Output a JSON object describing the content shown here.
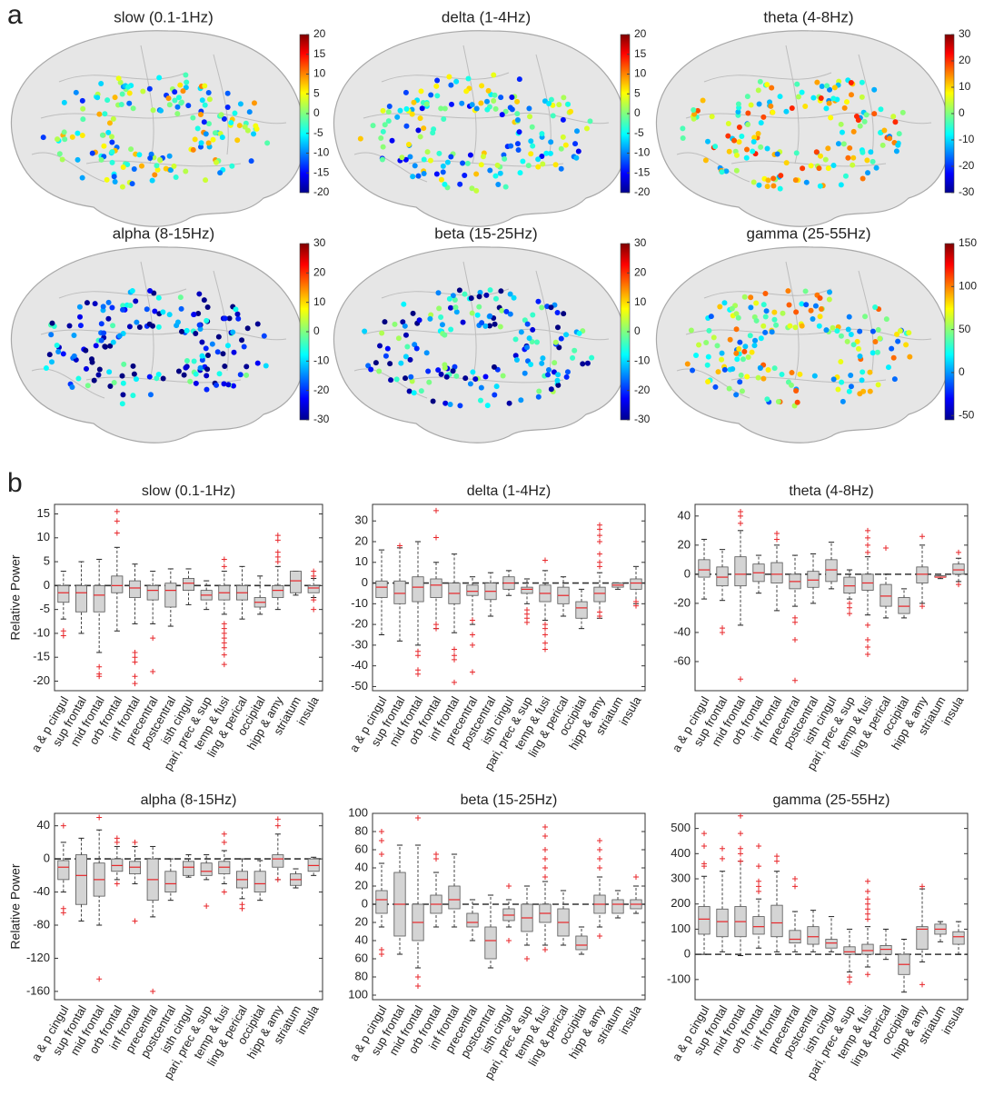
{
  "panel_labels": [
    "a",
    "b"
  ],
  "brain_maps": [
    {
      "title": "slow (0.1-1Hz)",
      "clim": [
        -20,
        20
      ],
      "colorbar_ticks": [
        20,
        15,
        10,
        5,
        0,
        -5,
        -10,
        -15,
        -20
      ]
    },
    {
      "title": "delta (1-4Hz)",
      "clim": [
        -20,
        20
      ],
      "colorbar_ticks": [
        20,
        15,
        10,
        5,
        0,
        -5,
        -10,
        -15,
        -20
      ]
    },
    {
      "title": "theta (4-8Hz)",
      "clim": [
        -30,
        30
      ],
      "colorbar_ticks": [
        30,
        20,
        10,
        0,
        -10,
        -20,
        -30
      ]
    },
    {
      "title": "alpha (8-15Hz)",
      "clim": [
        -30,
        30
      ],
      "colorbar_ticks": [
        30,
        20,
        10,
        0,
        -10,
        -20,
        -30
      ]
    },
    {
      "title": "beta (15-25Hz)",
      "clim": [
        -30,
        30
      ],
      "colorbar_ticks": [
        30,
        20,
        10,
        0,
        -10,
        -20,
        -30
      ]
    },
    {
      "title": "gamma (25-55Hz)",
      "clim": [
        -55,
        150
      ],
      "colorbar_ticks": [
        150,
        100,
        50,
        0,
        -50
      ]
    }
  ],
  "chart_data": [
    {
      "type": "box",
      "title": "slow (0.1-1Hz)",
      "ylabel": "Relative Power",
      "categories": [
        "a & p cingul",
        "sup frontal",
        "mid frontal",
        "orb frontal",
        "inf frontal",
        "precentral",
        "postcentral",
        "isth cingul",
        "pari, prec & sup",
        "temp & fusi",
        "ling & perical",
        "occipital",
        "hipp & amy",
        "striatum",
        "insula"
      ],
      "whisker_low": [
        -7,
        -10,
        -14,
        -9.5,
        -8,
        -8,
        -8.5,
        -4,
        -5,
        -6,
        -7,
        -6,
        -5,
        -2,
        -2.5
      ],
      "q1": [
        -3.5,
        -5.5,
        -5.5,
        -1.5,
        -2.5,
        -3,
        -4.5,
        -1,
        -3,
        -3,
        -3,
        -4.5,
        -2.5,
        -1.5,
        -1.5
      ],
      "median": [
        -1.5,
        -1.5,
        -2,
        0,
        -0.5,
        -1,
        -1,
        0.5,
        -2,
        -1.5,
        -1.5,
        -3.5,
        -1,
        1,
        -0.5
      ],
      "q3": [
        0,
        0,
        0,
        2,
        1,
        0,
        0.5,
        1.5,
        -1,
        0,
        0,
        -2.5,
        0,
        3,
        0
      ],
      "whisker_high": [
        3,
        5,
        5.5,
        8,
        4.5,
        3,
        3.5,
        3.5,
        1,
        3,
        4,
        2,
        4,
        3,
        1.5
      ],
      "outliers": [
        [
          -9.5,
          -10.5
        ],
        [],
        [
          -17,
          -18.5,
          -19
        ],
        [
          15.5,
          13.5,
          11
        ],
        [
          -14,
          -15,
          -16,
          -19,
          -20.5
        ],
        [
          -11,
          -18
        ],
        [],
        [],
        [],
        [
          5.5,
          4,
          -8,
          -9,
          -10,
          -11,
          -12,
          -13,
          -14.5,
          -16.5
        ],
        [],
        [],
        [
          10.5,
          9.5,
          7,
          6,
          5
        ],
        [],
        [
          3,
          2,
          -3,
          -5
        ]
      ],
      "ylim": [
        -22,
        17
      ],
      "yticks": [
        -20,
        -15,
        -10,
        -5,
        0,
        5,
        10,
        15
      ],
      "reference_line": 0,
      "box_color": "#d4d4d4",
      "median_color": "#e8262a",
      "outlier_color": "#e8262a"
    },
    {
      "type": "box",
      "title": "delta (1-4Hz)",
      "categories": [
        "a & p cingul",
        "sup frontal",
        "mid frontal",
        "orb frontal",
        "inf frontal",
        "precentral",
        "postcentral",
        "isth cingul",
        "pari, prec & sup",
        "temp & fusi",
        "ling & perical",
        "occipital",
        "hipp & amy",
        "striatum",
        "insula"
      ],
      "whisker_low": [
        -25,
        -28,
        -30,
        -22,
        -24,
        -20,
        -16,
        -6,
        -10,
        -18,
        -16,
        -22,
        -17,
        -3,
        -10
      ],
      "q1": [
        -7,
        -10,
        -9,
        -7,
        -10,
        -6,
        -8,
        -3,
        -5,
        -9,
        -10,
        -17,
        -9,
        -2,
        -3
      ],
      "median": [
        -2,
        -5,
        -2,
        -1,
        -5,
        -4,
        -4,
        0,
        -3,
        -5,
        -6,
        -12,
        -5,
        -1,
        0
      ],
      "q3": [
        1,
        1,
        3,
        2,
        0,
        -1,
        0,
        3,
        -2,
        -1,
        -2,
        -9,
        -2,
        0,
        2
      ],
      "whisker_high": [
        16,
        17,
        20,
        10,
        14,
        3,
        5,
        6,
        2,
        6,
        3,
        -3,
        5,
        0,
        8
      ],
      "outliers": [
        [],
        [
          18
        ],
        [
          -33,
          -35,
          -42,
          -44
        ],
        [
          35,
          22,
          -20,
          -22
        ],
        [
          -32,
          -35,
          -37,
          -48
        ],
        [
          -18,
          -25,
          -30,
          -43
        ],
        [],
        [],
        [
          -13,
          -15,
          -17,
          -19
        ],
        [
          11,
          -20,
          -22,
          -25,
          -29,
          -32
        ],
        [],
        [],
        [
          28,
          26,
          23,
          20,
          14,
          10,
          8,
          -14,
          -16
        ],
        [],
        [
          -9,
          -11
        ]
      ],
      "ylim": [
        -52,
        38
      ],
      "yticks": [
        -50,
        -40,
        -30,
        -20,
        -10,
        0,
        10,
        20,
        30
      ],
      "reference_line": 0,
      "box_color": "#d4d4d4",
      "median_color": "#e8262a",
      "outlier_color": "#e8262a"
    },
    {
      "type": "box",
      "title": "theta (4-8Hz)",
      "categories": [
        "a & p cingul",
        "sup frontal",
        "mid frontal",
        "orb frontal",
        "inf frontal",
        "precentral",
        "postcentral",
        "isth cingul",
        "pari, prec & sup",
        "temp & fusi",
        "ling & perical",
        "occipital",
        "hipp & amy",
        "striatum",
        "insula"
      ],
      "whisker_low": [
        -17,
        -18,
        -35,
        -13,
        -25,
        -22,
        -20,
        -10,
        -17,
        -28,
        -30,
        -30,
        -20,
        -3,
        -5
      ],
      "q1": [
        -2,
        -8,
        -8,
        -5,
        -6,
        -10,
        -9,
        -5,
        -13,
        -11,
        -22,
        -27,
        -6,
        -2,
        0
      ],
      "median": [
        3,
        -2,
        0,
        1,
        0,
        -5,
        -4,
        3,
        -8,
        -6,
        -15,
        -22,
        0,
        -2,
        3
      ],
      "q3": [
        10,
        5,
        12,
        7,
        8,
        0,
        2,
        10,
        -2,
        0,
        -7,
        -16,
        5,
        -1,
        7
      ],
      "whisker_high": [
        24,
        17,
        30,
        13,
        20,
        13,
        14,
        22,
        3,
        12,
        0,
        -10,
        20,
        -1,
        11
      ],
      "outliers": [
        [],
        [
          -37,
          -40
        ],
        [
          43,
          40,
          35,
          -72
        ],
        [],
        [
          28,
          24
        ],
        [
          -30,
          -33,
          -45,
          -73
        ],
        [],
        [],
        [
          -20,
          -23,
          -27
        ],
        [
          30,
          25,
          20,
          15,
          -35,
          -45,
          -50,
          -55
        ],
        [
          18
        ],
        [],
        [
          26,
          -22
        ],
        [],
        [
          15,
          -7
        ]
      ],
      "ylim": [
        -80,
        48
      ],
      "yticks": [
        -60,
        -40,
        -20,
        0,
        20,
        40
      ],
      "reference_line": 0,
      "box_color": "#d4d4d4",
      "median_color": "#e8262a",
      "outlier_color": "#e8262a"
    },
    {
      "type": "box",
      "title": "alpha (8-15Hz)",
      "ylabel": "Relative Power",
      "categories": [
        "a & p cingul",
        "sup frontal",
        "mid frontal",
        "orb frontal",
        "inf frontal",
        "precentral",
        "postcentral",
        "isth cingul",
        "pari, prec & sup",
        "temp & fusi",
        "ling & perical",
        "occipital",
        "hipp & amy",
        "striatum",
        "insula"
      ],
      "whisker_low": [
        -40,
        -75,
        -80,
        -25,
        -30,
        -70,
        -50,
        -22,
        -25,
        -30,
        -48,
        -50,
        -25,
        -35,
        -20
      ],
      "q1": [
        -25,
        -55,
        -45,
        -15,
        -18,
        -50,
        -40,
        -20,
        -20,
        -18,
        -35,
        -40,
        -10,
        -32,
        -15
      ],
      "median": [
        -10,
        -20,
        -25,
        -8,
        -10,
        -25,
        -30,
        -10,
        -15,
        -10,
        -25,
        -30,
        0,
        -25,
        -8
      ],
      "q3": [
        -2,
        5,
        -5,
        0,
        -3,
        0,
        -15,
        -3,
        -5,
        -3,
        -15,
        -15,
        5,
        -18,
        0
      ],
      "whisker_high": [
        20,
        25,
        35,
        15,
        15,
        15,
        0,
        5,
        5,
        10,
        0,
        -2,
        30,
        -12,
        2
      ],
      "outliers": [
        [
          40,
          -60,
          -65
        ],
        [],
        [
          50,
          -145
        ],
        [
          25,
          20,
          -30
        ],
        [
          20,
          -75
        ],
        [
          -160
        ],
        [],
        [],
        [
          -57
        ],
        [
          30,
          20,
          -40
        ],
        [
          -55,
          -60
        ],
        [],
        [
          48,
          40,
          -25
        ],
        [],
        []
      ],
      "ylim": [
        -170,
        55
      ],
      "yticks": [
        -160,
        -120,
        -80,
        -40,
        0,
        40
      ],
      "reference_line": 0,
      "box_color": "#d4d4d4",
      "median_color": "#e8262a",
      "outlier_color": "#e8262a"
    },
    {
      "type": "box",
      "title": "beta (15-25Hz)",
      "categories": [
        "a & p cingul",
        "sup frontal",
        "mid frontal",
        "orb frontal",
        "inf frontal",
        "precentral",
        "postcentral",
        "isth cingul",
        "pari, prec & sup",
        "temp & fusi",
        "ling & perical",
        "occipital",
        "hipp & amy",
        "striatum",
        "insula"
      ],
      "whisker_low": [
        -25,
        -55,
        -70,
        -25,
        -25,
        -40,
        -70,
        -25,
        -45,
        -45,
        -45,
        -55,
        -25,
        -15,
        -10
      ],
      "q1": [
        -10,
        -35,
        -40,
        -10,
        -5,
        -25,
        -60,
        -18,
        -30,
        -20,
        -35,
        -50,
        -10,
        -10,
        -5
      ],
      "median": [
        5,
        0,
        -20,
        0,
        5,
        -20,
        -40,
        -12,
        -15,
        -10,
        -20,
        -45,
        0,
        0,
        0
      ],
      "q3": [
        15,
        35,
        0,
        10,
        20,
        -10,
        -25,
        -5,
        0,
        0,
        -5,
        -35,
        10,
        5,
        5
      ],
      "whisker_high": [
        45,
        65,
        65,
        35,
        55,
        5,
        10,
        5,
        20,
        25,
        15,
        -25,
        30,
        15,
        20
      ],
      "outliers": [
        [
          80,
          70,
          55,
          -50,
          -55
        ],
        [],
        [
          95,
          -80,
          -90
        ],
        [
          55,
          50
        ],
        [],
        [],
        [],
        [
          -40,
          20
        ],
        [
          -60
        ],
        [
          85,
          75,
          60,
          50,
          40,
          30,
          -50
        ],
        [],
        [],
        [
          70,
          60,
          50,
          40,
          -35
        ],
        [],
        [
          30
        ]
      ],
      "ylim": [
        -105,
        100
      ],
      "yticks": [
        {
          "value": -100,
          "label": "100"
        },
        {
          "value": -80,
          "label": "80"
        },
        {
          "value": -60,
          "label": "60"
        },
        {
          "value": -40,
          "label": "40"
        },
        {
          "value": -20,
          "label": "20"
        },
        0,
        20,
        40,
        60,
        80,
        100
      ],
      "reference_line": 0,
      "box_color": "#d4d4d4",
      "median_color": "#e8262a",
      "outlier_color": "#e8262a"
    },
    {
      "type": "box",
      "title": "gamma (25-55Hz)",
      "categories": [
        "a & p cingul",
        "sup frontal",
        "mid frontal",
        "orb frontal",
        "inf frontal",
        "precentral",
        "postcentral",
        "isth cingul",
        "pari, prec & sup",
        "temp & fusi",
        "ling & perical",
        "occipital",
        "hipp & amy",
        "striatum",
        "insula"
      ],
      "whisker_low": [
        0,
        10,
        -5,
        25,
        10,
        10,
        10,
        10,
        -70,
        -50,
        -20,
        -150,
        -30,
        50,
        0
      ],
      "q1": [
        80,
        70,
        70,
        80,
        70,
        45,
        40,
        25,
        0,
        0,
        0,
        -80,
        20,
        80,
        40
      ],
      "median": [
        140,
        130,
        130,
        110,
        125,
        60,
        70,
        45,
        10,
        15,
        20,
        -40,
        100,
        100,
        70
      ],
      "q3": [
        190,
        180,
        190,
        150,
        195,
        95,
        110,
        60,
        30,
        40,
        35,
        0,
        110,
        120,
        90
      ],
      "whisker_high": [
        310,
        330,
        370,
        220,
        330,
        170,
        175,
        150,
        100,
        110,
        100,
        60,
        260,
        130,
        130
      ],
      "outliers": [
        [
          480,
          430,
          360,
          350
        ],
        [
          420,
          380
        ],
        [
          550,
          480,
          420,
          400,
          370
        ],
        [
          430,
          350,
          290,
          270,
          250
        ],
        [
          390,
          370
        ],
        [
          300,
          270
        ],
        [],
        [],
        [
          -90,
          -110
        ],
        [
          290,
          250,
          220,
          200,
          180,
          160,
          140,
          -80
        ],
        [],
        [],
        [
          270,
          -120
        ],
        [],
        []
      ],
      "ylim": [
        -180,
        560
      ],
      "yticks": [
        -100,
        0,
        100,
        200,
        300,
        400,
        500
      ],
      "reference_line": 0,
      "box_color": "#d4d4d4",
      "median_color": "#e8262a",
      "outlier_color": "#e8262a"
    }
  ]
}
